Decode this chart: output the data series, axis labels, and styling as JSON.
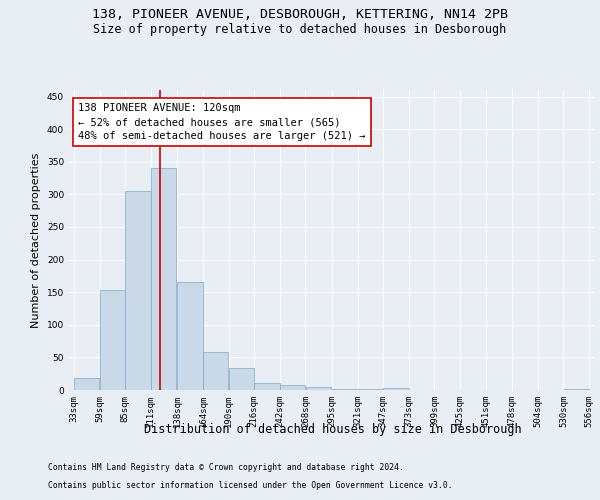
{
  "title_line1": "138, PIONEER AVENUE, DESBOROUGH, KETTERING, NN14 2PB",
  "title_line2": "Size of property relative to detached houses in Desborough",
  "xlabel": "Distribution of detached houses by size in Desborough",
  "ylabel": "Number of detached properties",
  "footnote1": "Contains HM Land Registry data © Crown copyright and database right 2024.",
  "footnote2": "Contains public sector information licensed under the Open Government Licence v3.0.",
  "bin_edges": [
    33,
    59,
    85,
    111,
    138,
    164,
    190,
    216,
    242,
    268,
    295,
    321,
    347,
    373,
    399,
    425,
    451,
    478,
    504,
    530,
    556
  ],
  "bar_heights": [
    18,
    154,
    305,
    340,
    165,
    58,
    33,
    10,
    7,
    5,
    2,
    1,
    3,
    0,
    0,
    0,
    0,
    0,
    0,
    2
  ],
  "bar_color": "#c9d9e8",
  "bar_edge_color": "#7aaac8",
  "property_size": 120,
  "property_line_color": "#cc0000",
  "annotation_text": "138 PIONEER AVENUE: 120sqm\n← 52% of detached houses are smaller (565)\n48% of semi-detached houses are larger (521) →",
  "annotation_box_color": "#ffffff",
  "annotation_box_edge_color": "#cc0000",
  "annotation_fontsize": 7.5,
  "ylim": [
    0,
    460
  ],
  "background_color": "#e8eef4",
  "grid_color": "#ffffff",
  "title_fontsize": 9.5,
  "subtitle_fontsize": 8.5,
  "axis_label_fontsize": 8,
  "tick_fontsize": 6.5
}
